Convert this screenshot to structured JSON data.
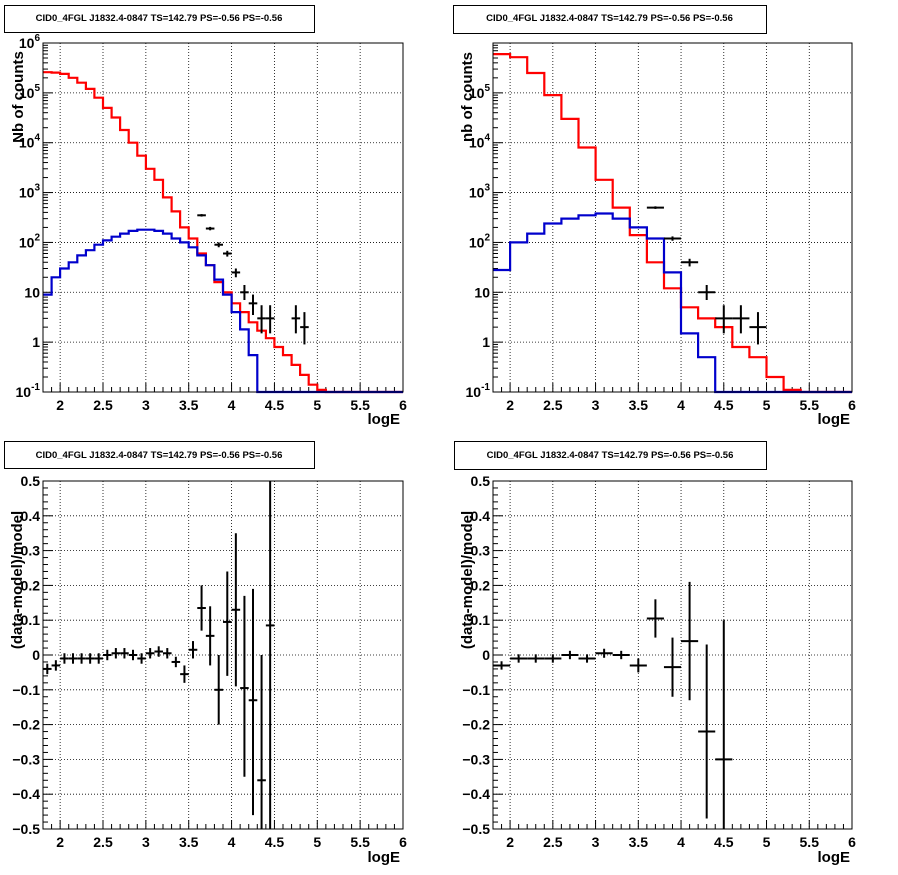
{
  "colors": {
    "model": "#ff0000",
    "source": "#0000cc",
    "data": "#000000",
    "grid": "#000000",
    "frame": "#000000",
    "background": "#ffffff"
  },
  "chart_data": [
    {
      "type": "histogram-log",
      "title": "CID0_4FGL J1832.4-0847 TS=142.79 PS=-0.56 PS=-0.56",
      "xlabel": "logE",
      "ylabel": "Nb of counts",
      "xlim": [
        1.8,
        6.0
      ],
      "ylim": [
        0.1,
        1000000
      ],
      "log_y": true,
      "grid": true,
      "x_ticks": [
        "2",
        "2.5",
        "3",
        "3.5",
        "4",
        "4.5",
        "5",
        "5.5",
        "6"
      ],
      "y_ticks": [
        "10^-1",
        "1",
        "10",
        "10^2",
        "10^3",
        "10^4",
        "10^5",
        "10^6"
      ],
      "bin_edges": [
        1.8,
        1.9,
        2.0,
        2.1,
        2.2,
        2.3,
        2.4,
        2.5,
        2.6,
        2.7,
        2.8,
        2.9,
        3.0,
        3.1,
        3.2,
        3.3,
        3.4,
        3.5,
        3.6,
        3.7,
        3.8,
        3.9,
        4.0,
        4.1,
        4.2,
        4.3,
        4.4,
        4.5,
        4.6,
        4.7,
        4.8,
        4.9,
        5.0,
        5.1,
        5.2,
        5.3,
        5.4,
        5.5,
        5.6,
        5.7,
        5.8,
        5.9,
        6.0
      ],
      "series": [
        {
          "kind": "model",
          "values": [
            260000,
            255000,
            240000,
            200000,
            160000,
            120000,
            80000,
            50000,
            32000,
            18000,
            10000,
            5500,
            3000,
            1800,
            800,
            420,
            200,
            120,
            60,
            35,
            16,
            10,
            6,
            4,
            2.5,
            1.7,
            1.2,
            0.8,
            0.55,
            0.35,
            0.22,
            0.14,
            0.11,
            0.1,
            0.1,
            0.1,
            0.1,
            0.1,
            0.1,
            0.1,
            0.1,
            0.1
          ]
        },
        {
          "kind": "source",
          "values": [
            9,
            20,
            30,
            40,
            55,
            70,
            90,
            110,
            130,
            150,
            170,
            180,
            180,
            170,
            150,
            120,
            100,
            80,
            55,
            35,
            18,
            9,
            4,
            1.8,
            0.55,
            0.1,
            0.1,
            0.1,
            0.1,
            0.1,
            0.1,
            0.1,
            0.1,
            0.1,
            0.1,
            0.1,
            0.1,
            0.1,
            0.1,
            0.1,
            0.1,
            0.1
          ]
        }
      ],
      "data_points": [
        {
          "x": 3.65,
          "y": 350,
          "xerr": 0.05,
          "ylo": 330,
          "yhi": 370
        },
        {
          "x": 3.75,
          "y": 190,
          "xerr": 0.05,
          "ylo": 175,
          "yhi": 205
        },
        {
          "x": 3.85,
          "y": 90,
          "xerr": 0.05,
          "ylo": 80,
          "yhi": 100
        },
        {
          "x": 3.95,
          "y": 60,
          "xerr": 0.05,
          "ylo": 52,
          "yhi": 68
        },
        {
          "x": 4.05,
          "y": 25,
          "xerr": 0.05,
          "ylo": 20,
          "yhi": 30
        },
        {
          "x": 4.15,
          "y": 10,
          "xerr": 0.05,
          "ylo": 7,
          "yhi": 14
        },
        {
          "x": 4.25,
          "y": 6,
          "xerr": 0.05,
          "ylo": 3.5,
          "yhi": 9
        },
        {
          "x": 4.35,
          "y": 3,
          "xerr": 0.05,
          "ylo": 1.5,
          "yhi": 5.5
        },
        {
          "x": 4.45,
          "y": 3,
          "xerr": 0.05,
          "ylo": 1.5,
          "yhi": 5.5
        },
        {
          "x": 4.75,
          "y": 3,
          "xerr": 0.05,
          "ylo": 1.5,
          "yhi": 5.5
        },
        {
          "x": 4.85,
          "y": 2,
          "xerr": 0.05,
          "ylo": 0.9,
          "yhi": 4
        }
      ]
    },
    {
      "type": "histogram-log",
      "title": "CID0_4FGL J1832.4-0847 TS=142.79 PS=-0.56 PS=-0.56",
      "xlabel": "logE",
      "ylabel": "nb of counts",
      "xlim": [
        1.8,
        6.0
      ],
      "ylim": [
        0.1,
        1000000
      ],
      "log_y": true,
      "grid": true,
      "x_ticks": [
        "2",
        "2.5",
        "3",
        "3.5",
        "4",
        "4.5",
        "5",
        "5.5",
        "6"
      ],
      "y_ticks": [
        "10^-1",
        "1",
        "10",
        "10^2",
        "10^3",
        "10^4",
        "10^5"
      ],
      "bin_edges": [
        1.8,
        2.0,
        2.2,
        2.4,
        2.6,
        2.8,
        3.0,
        3.2,
        3.4,
        3.6,
        3.8,
        4.0,
        4.2,
        4.4,
        4.6,
        4.8,
        5.0,
        5.2,
        5.4,
        5.6,
        5.8,
        6.0
      ],
      "series": [
        {
          "kind": "model",
          "values": [
            600000,
            520000,
            250000,
            90000,
            30000,
            8000,
            1800,
            500,
            140,
            40,
            12,
            5,
            3,
            2,
            0.8,
            0.5,
            0.2,
            0.11,
            0.1,
            0.1,
            0.1
          ]
        },
        {
          "kind": "source",
          "values": [
            28,
            100,
            150,
            240,
            300,
            350,
            380,
            300,
            200,
            120,
            25,
            1.5,
            0.5,
            0.1,
            0.1,
            0.1,
            0.1,
            0.1,
            0.1,
            0.1,
            0.1
          ]
        }
      ],
      "data_points": [
        {
          "x": 3.7,
          "y": 500,
          "xerr": 0.1,
          "ylo": 470,
          "yhi": 530
        },
        {
          "x": 3.9,
          "y": 120,
          "xerr": 0.1,
          "ylo": 108,
          "yhi": 132
        },
        {
          "x": 4.1,
          "y": 40,
          "xerr": 0.1,
          "ylo": 33,
          "yhi": 47
        },
        {
          "x": 4.3,
          "y": 10,
          "xerr": 0.1,
          "ylo": 7,
          "yhi": 14
        },
        {
          "x": 4.5,
          "y": 3,
          "xerr": 0.1,
          "ylo": 1.5,
          "yhi": 5.5
        },
        {
          "x": 4.7,
          "y": 3,
          "xerr": 0.1,
          "ylo": 1.5,
          "yhi": 5.5
        },
        {
          "x": 4.9,
          "y": 2,
          "xerr": 0.1,
          "ylo": 0.9,
          "yhi": 4
        }
      ]
    },
    {
      "type": "scatter-errorbar",
      "title": "CID0_4FGL J1832.4-0847 TS=142.79 PS=-0.56 PS=-0.56",
      "xlabel": "logE",
      "ylabel": "(data-model)/model",
      "xlim": [
        1.8,
        6.0
      ],
      "ylim": [
        -0.5,
        0.5
      ],
      "grid": true,
      "x_ticks": [
        "2",
        "2.5",
        "3",
        "3.5",
        "4",
        "4.5",
        "5",
        "5.5",
        "6"
      ],
      "y_ticks": [
        "−0.5",
        "−0.4",
        "−0.3",
        "−0.2",
        "−0.1",
        "0",
        "0.1",
        "0.2",
        "0.3",
        "0.4",
        "0.5"
      ],
      "points": [
        {
          "x": 1.85,
          "y": -0.04,
          "xerr": 0.05,
          "ylo": -0.055,
          "yhi": -0.025
        },
        {
          "x": 1.95,
          "y": -0.03,
          "xerr": 0.05,
          "ylo": -0.045,
          "yhi": -0.015
        },
        {
          "x": 2.05,
          "y": -0.01,
          "xerr": 0.05,
          "ylo": -0.025,
          "yhi": 0.005
        },
        {
          "x": 2.15,
          "y": -0.01,
          "xerr": 0.05,
          "ylo": -0.025,
          "yhi": 0.005
        },
        {
          "x": 2.25,
          "y": -0.01,
          "xerr": 0.05,
          "ylo": -0.025,
          "yhi": 0.005
        },
        {
          "x": 2.35,
          "y": -0.01,
          "xerr": 0.05,
          "ylo": -0.025,
          "yhi": 0.005
        },
        {
          "x": 2.45,
          "y": -0.01,
          "xerr": 0.05,
          "ylo": -0.025,
          "yhi": 0.005
        },
        {
          "x": 2.55,
          "y": 0.0,
          "xerr": 0.05,
          "ylo": -0.015,
          "yhi": 0.015
        },
        {
          "x": 2.65,
          "y": 0.005,
          "xerr": 0.05,
          "ylo": -0.01,
          "yhi": 0.02
        },
        {
          "x": 2.75,
          "y": 0.005,
          "xerr": 0.05,
          "ylo": -0.01,
          "yhi": 0.02
        },
        {
          "x": 2.85,
          "y": 0.0,
          "xerr": 0.05,
          "ylo": -0.015,
          "yhi": 0.015
        },
        {
          "x": 2.95,
          "y": -0.01,
          "xerr": 0.05,
          "ylo": -0.025,
          "yhi": 0.005
        },
        {
          "x": 3.05,
          "y": 0.005,
          "xerr": 0.05,
          "ylo": -0.01,
          "yhi": 0.02
        },
        {
          "x": 3.15,
          "y": 0.01,
          "xerr": 0.05,
          "ylo": -0.005,
          "yhi": 0.025
        },
        {
          "x": 3.25,
          "y": 0.005,
          "xerr": 0.05,
          "ylo": -0.01,
          "yhi": 0.02
        },
        {
          "x": 3.35,
          "y": -0.02,
          "xerr": 0.05,
          "ylo": -0.035,
          "yhi": -0.005
        },
        {
          "x": 3.45,
          "y": -0.055,
          "xerr": 0.05,
          "ylo": -0.08,
          "yhi": -0.03
        },
        {
          "x": 3.55,
          "y": 0.015,
          "xerr": 0.05,
          "ylo": -0.01,
          "yhi": 0.04
        },
        {
          "x": 3.65,
          "y": 0.135,
          "xerr": 0.05,
          "ylo": 0.07,
          "yhi": 0.2
        },
        {
          "x": 3.75,
          "y": 0.055,
          "xerr": 0.05,
          "ylo": -0.03,
          "yhi": 0.14
        },
        {
          "x": 3.85,
          "y": -0.1,
          "xerr": 0.05,
          "ylo": -0.2,
          "yhi": 0.0
        },
        {
          "x": 3.95,
          "y": 0.095,
          "xerr": 0.05,
          "ylo": -0.06,
          "yhi": 0.24
        },
        {
          "x": 4.05,
          "y": 0.13,
          "xerr": 0.05,
          "ylo": -0.09,
          "yhi": 0.35
        },
        {
          "x": 4.15,
          "y": -0.095,
          "xerr": 0.05,
          "ylo": -0.35,
          "yhi": 0.17
        },
        {
          "x": 4.25,
          "y": -0.13,
          "xerr": 0.05,
          "ylo": -0.46,
          "yhi": 0.19
        },
        {
          "x": 4.35,
          "y": -0.36,
          "xerr": 0.05,
          "ylo": -0.5,
          "yhi": 0.0
        },
        {
          "x": 4.45,
          "y": 0.085,
          "xerr": 0.05,
          "ylo": -0.5,
          "yhi": 0.5
        }
      ]
    },
    {
      "type": "scatter-errorbar",
      "title": "CID0_4FGL J1832.4-0847 TS=142.79 PS=-0.56 PS=-0.56",
      "xlabel": "logE",
      "ylabel": "(data-model)/model",
      "xlim": [
        1.8,
        6.0
      ],
      "ylim": [
        -0.5,
        0.5
      ],
      "grid": true,
      "x_ticks": [
        "2",
        "2.5",
        "3",
        "3.5",
        "4",
        "4.5",
        "5",
        "5.5",
        "6"
      ],
      "y_ticks": [
        "−0.5",
        "−0.4",
        "−0.3",
        "−0.2",
        "−0.1",
        "0",
        "0.1",
        "0.2",
        "0.3",
        "0.4",
        "0.5"
      ],
      "points": [
        {
          "x": 1.9,
          "y": -0.03,
          "xerr": 0.1,
          "ylo": -0.042,
          "yhi": -0.018
        },
        {
          "x": 2.1,
          "y": -0.01,
          "xerr": 0.1,
          "ylo": -0.022,
          "yhi": 0.002
        },
        {
          "x": 2.3,
          "y": -0.01,
          "xerr": 0.1,
          "ylo": -0.022,
          "yhi": 0.002
        },
        {
          "x": 2.5,
          "y": -0.01,
          "xerr": 0.1,
          "ylo": -0.022,
          "yhi": 0.002
        },
        {
          "x": 2.7,
          "y": 0.0,
          "xerr": 0.1,
          "ylo": -0.012,
          "yhi": 0.012
        },
        {
          "x": 2.9,
          "y": -0.01,
          "xerr": 0.1,
          "ylo": -0.022,
          "yhi": 0.002
        },
        {
          "x": 3.1,
          "y": 0.005,
          "xerr": 0.1,
          "ylo": -0.008,
          "yhi": 0.018
        },
        {
          "x": 3.3,
          "y": 0.0,
          "xerr": 0.1,
          "ylo": -0.012,
          "yhi": 0.012
        },
        {
          "x": 3.5,
          "y": -0.03,
          "xerr": 0.1,
          "ylo": -0.05,
          "yhi": -0.01
        },
        {
          "x": 3.7,
          "y": 0.105,
          "xerr": 0.1,
          "ylo": 0.05,
          "yhi": 0.16
        },
        {
          "x": 3.9,
          "y": -0.035,
          "xerr": 0.1,
          "ylo": -0.12,
          "yhi": 0.05
        },
        {
          "x": 4.1,
          "y": 0.04,
          "xerr": 0.1,
          "ylo": -0.13,
          "yhi": 0.21
        },
        {
          "x": 4.3,
          "y": -0.22,
          "xerr": 0.1,
          "ylo": -0.47,
          "yhi": 0.03
        },
        {
          "x": 4.5,
          "y": -0.3,
          "xerr": 0.1,
          "ylo": -0.5,
          "yhi": 0.1
        }
      ]
    }
  ]
}
